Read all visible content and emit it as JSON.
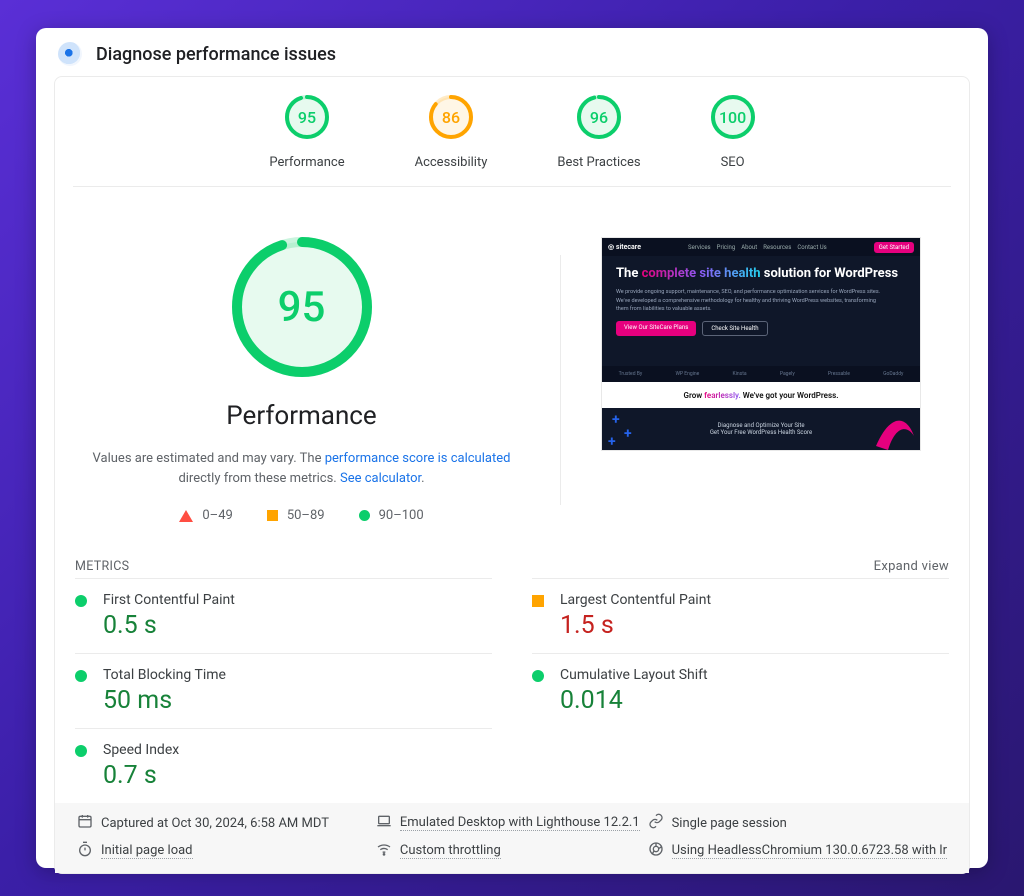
{
  "colors": {
    "good": "#0cce6b",
    "avg": "#ffa400",
    "bad": "#ff4e42",
    "good_fill": "#e7faef",
    "avg_fill": "#fff6e6",
    "metric_good_text": "#178239",
    "metric_bad_text": "#c5221f",
    "link": "#1a73e8"
  },
  "header": {
    "title": "Diagnose performance issues"
  },
  "gauges": {
    "size": 44,
    "stroke": 4,
    "items": [
      {
        "label": "Performance",
        "score": 95,
        "tier": "good"
      },
      {
        "label": "Accessibility",
        "score": 86,
        "tier": "avg"
      },
      {
        "label": "Best Practices",
        "score": 96,
        "tier": "good"
      },
      {
        "label": "SEO",
        "score": 100,
        "tier": "good"
      }
    ]
  },
  "hero": {
    "gauge": {
      "score": 95,
      "tier": "good",
      "size": 140,
      "stroke": 10,
      "font": 42
    },
    "title": "Performance",
    "note_before": "Values are estimated and may vary. The ",
    "note_link1": "performance score is calculated",
    "note_mid": " directly from these metrics. ",
    "note_link2": "See calculator",
    "note_after": ".",
    "legend": [
      {
        "shape": "tri",
        "label": "0–49"
      },
      {
        "shape": "sq",
        "label": "50–89"
      },
      {
        "shape": "dot",
        "label": "90–100"
      }
    ]
  },
  "screenshot": {
    "brand": "sitecare",
    "nav": [
      "Services",
      "Pricing",
      "About",
      "Resources",
      "Contact Us"
    ],
    "cta": "Get Started",
    "headline_pre": "The ",
    "headline_grad": "complete site health",
    "headline_post": " solution for WordPress",
    "sub": "We provide ongoing support, maintenance, SEO, and performance optimization services for WordPress sites. We've developed a comprehensive methodology for healthy and thriving WordPress websites, transforming them from liabilities to valuable assets.",
    "btn1": "View Our SiteCare Plans",
    "btn2": "Check Site Health",
    "trust": [
      "Trusted By",
      "WP Engine",
      "Kinsta",
      "Pagely",
      "Pressable",
      "GoDaddy"
    ],
    "white_pre": "Grow ",
    "white_grad": "fearlessly.",
    "white_post": " We've got your WordPress.",
    "bottom1": "Diagnose and Optimize Your Site",
    "bottom2": "Get Your Free WordPress Health Score"
  },
  "metrics": {
    "title": "METRICS",
    "expand": "Expand view",
    "items": [
      {
        "name": "First Contentful Paint",
        "value": "0.5 s",
        "tier": "good",
        "col": 0
      },
      {
        "name": "Largest Contentful Paint",
        "value": "1.5 s",
        "tier": "avg",
        "col": 1
      },
      {
        "name": "Total Blocking Time",
        "value": "50 ms",
        "tier": "good",
        "col": 0
      },
      {
        "name": "Cumulative Layout Shift",
        "value": "0.014",
        "tier": "good",
        "col": 1
      },
      {
        "name": "Speed Index",
        "value": "0.7 s",
        "tier": "good",
        "col": 0
      }
    ]
  },
  "env": {
    "items": [
      {
        "icon": "calendar",
        "text": "Captured at Oct 30, 2024, 6:58 AM MDT"
      },
      {
        "icon": "laptop",
        "text": "Emulated Desktop with Lighthouse 12.2.1",
        "dotted": true
      },
      {
        "icon": "link",
        "text": "Single page session"
      },
      {
        "icon": "stopwatch",
        "text": "Initial page load",
        "dotted": true
      },
      {
        "icon": "wifi",
        "text": "Custom throttling",
        "dotted": true
      },
      {
        "icon": "chrome",
        "text": "Using HeadlessChromium 130.0.6723.58 with lr",
        "dotted": true
      }
    ]
  }
}
